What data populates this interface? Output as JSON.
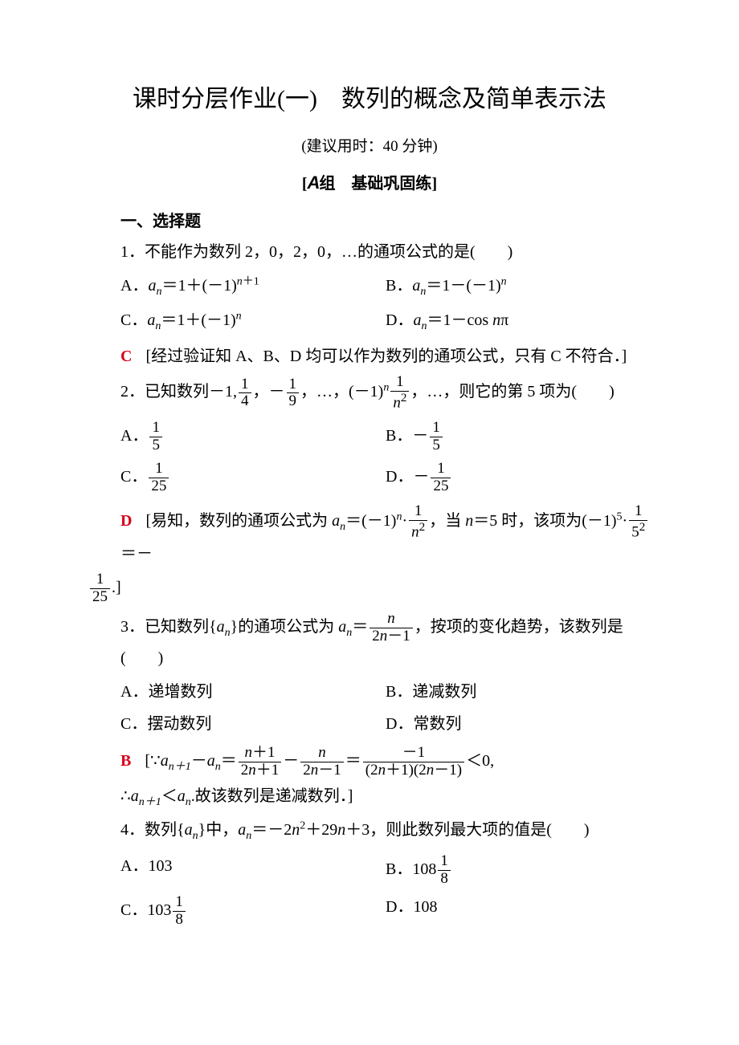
{
  "title": "课时分层作业(一)　数列的概念及简单表示法",
  "subtitle": "(建议用时：40 分钟)",
  "section_header_prefix": "[",
  "section_header_letter": "A",
  "section_header_text": "组　基础巩固练",
  "section_header_suffix": "]",
  "subheading1": "一、选择题",
  "q1": {
    "stem": "1．不能作为数列 2，0，2，0，…的通项公式的是(　　)",
    "A": "A．",
    "B": "B．",
    "C": "C．",
    "D": "D．",
    "ans_letter": "C",
    "ans_text": "[经过验证知 A、B、D 均可以作为数列的通项公式，只有 C 不符合．]"
  },
  "q2": {
    "stem_prefix": "2．已知数列",
    "stem_suffix": "，…，则它的第 5 项为(　　)",
    "A": "A．",
    "B": "B．",
    "C": "C．",
    "D": "D．",
    "ans_letter": "D",
    "ans_prefix": "[易知，数列的通项公式为 ",
    "ans_mid": "，当 ",
    "ans_eq": " 时，该项为",
    "ans_suffix": "＝"
  },
  "q3": {
    "stem_prefix": "3．已知数列{",
    "stem_mid": "}的通项公式为 ",
    "stem_suffix": "，按项的变化趋势，该数列是(　　)",
    "A": "A．递增数列",
    "B": "B．递减数列",
    "C": "C．摆动数列",
    "D": "D．常数列",
    "ans_letter": "B",
    "ans_suffix": ".故该数列是递减数列．]"
  },
  "q4": {
    "stem_prefix": "4．数列{",
    "stem_mid": "}中，",
    "stem_suffix": "，则此数列最大项的值是(　　)",
    "A": "A．103",
    "B": "B．",
    "C": "C．",
    "D": "D．108"
  },
  "colors": {
    "answer_red": "#d9001b",
    "text": "#000000",
    "bg": "#ffffff"
  }
}
